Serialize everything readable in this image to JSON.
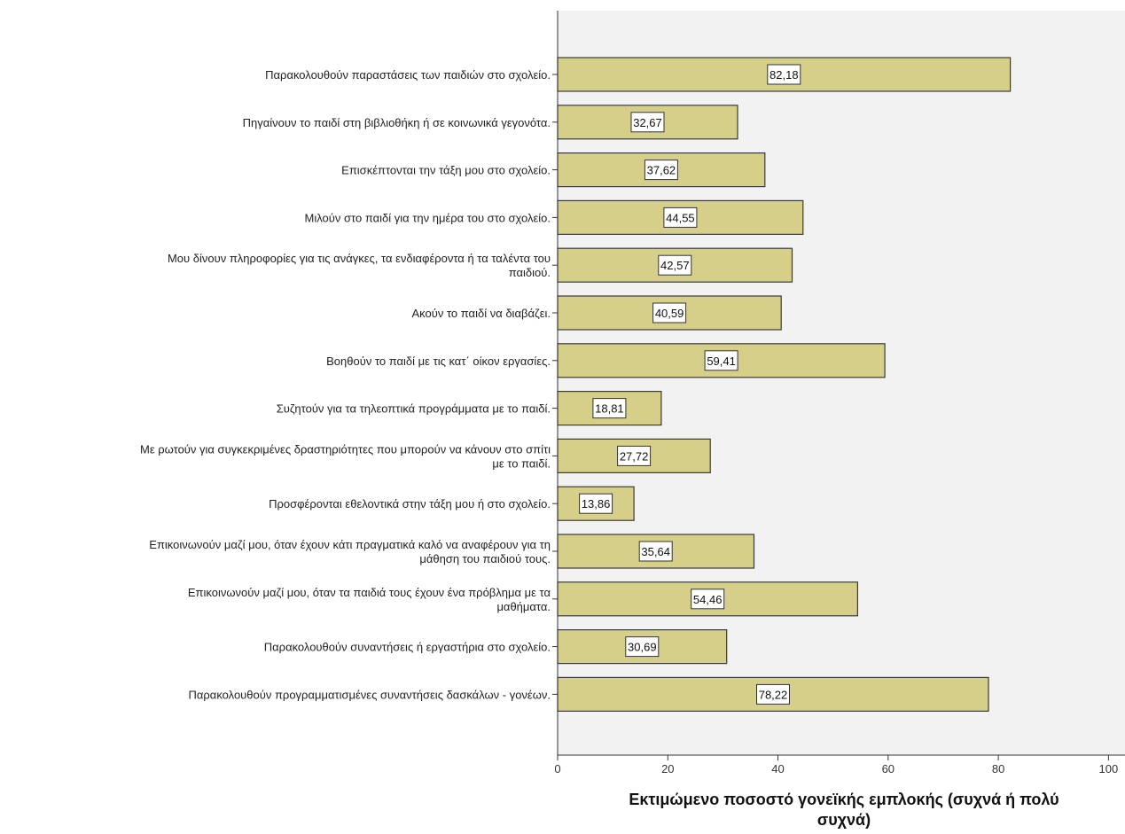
{
  "chart_data": {
    "type": "bar",
    "orientation": "horizontal",
    "categories": [
      [
        "Παρακολουθούν παραστάσεις των παιδιών στο σχολείο."
      ],
      [
        "Πηγαίνουν το παιδί στη βιβλιοθήκη ή σε κοινωνικά γεγονότα."
      ],
      [
        "Επισκέπτονται την τάξη μου στο σχολείο."
      ],
      [
        "Μιλούν στο παιδί για την ημέρα του στο σχολείο."
      ],
      [
        "Μου δίνουν πληροφορίες για τις ανάγκες, τα ενδιαφέροντα ή τα ταλέντα του",
        "παιδιού."
      ],
      [
        "Ακούν το παιδί να διαβάζει."
      ],
      [
        "Βοηθούν το παιδί με τις κατ΄ οίκον εργασίες."
      ],
      [
        "Συζητούν για τα τηλεοπτικά προγράμματα με το παιδί."
      ],
      [
        "Με ρωτούν για συγκεκριμένες δραστηριότητες που μπορούν να κάνουν στο σπίτι",
        "με το παιδί."
      ],
      [
        "Προσφέρονται εθελοντικά στην τάξη μου ή στο σχολείο."
      ],
      [
        "Επικοινωνούν μαζί μου, όταν έχουν κάτι πραγματικά καλό να αναφέρουν για τη",
        "μάθηση του παιδιού τους."
      ],
      [
        "Επικοινωνούν μαζί μου, όταν τα παιδιά τους έχουν ένα πρόβλημα με τα",
        "μαθήματα."
      ],
      [
        "Παρακολουθούν συναντήσεις ή εργαστήρια στο σχολείο."
      ],
      [
        "Παρακολουθούν προγραμματισμένες συναντήσεις δασκάλων - γονέων."
      ]
    ],
    "values": [
      82.18,
      32.67,
      37.62,
      44.55,
      42.57,
      40.59,
      59.41,
      18.81,
      27.72,
      13.86,
      35.64,
      54.46,
      30.69,
      78.22
    ],
    "value_labels": [
      "82,18",
      "32,67",
      "37,62",
      "44,55",
      "42,57",
      "40,59",
      "59,41",
      "18,81",
      "27,72",
      "13,86",
      "35,64",
      "54,46",
      "30,69",
      "78,22"
    ],
    "xlim": [
      0,
      103
    ],
    "xticks": [
      0,
      20,
      40,
      60,
      80,
      100
    ],
    "xtick_labels": [
      "0",
      "20",
      "40",
      "60",
      "80",
      "100"
    ],
    "xlabel": "Εκτιμώμενο ποσοστό γονεϊκής εμπλοκής (συχνά ή πολύ συχνά)",
    "xlabel_lines": [
      "Εκτιμώμενο ποσοστό γονεϊκής εμπλοκής (συχνά ή πολύ",
      "συχνά)"
    ],
    "ylabel": "",
    "grid": false,
    "colors": {
      "bar_fill": "#d6cf8a",
      "bar_stroke": "#3a3a3a",
      "plot_bg": "#f2f2f2",
      "label_box": "#ffffff"
    }
  }
}
